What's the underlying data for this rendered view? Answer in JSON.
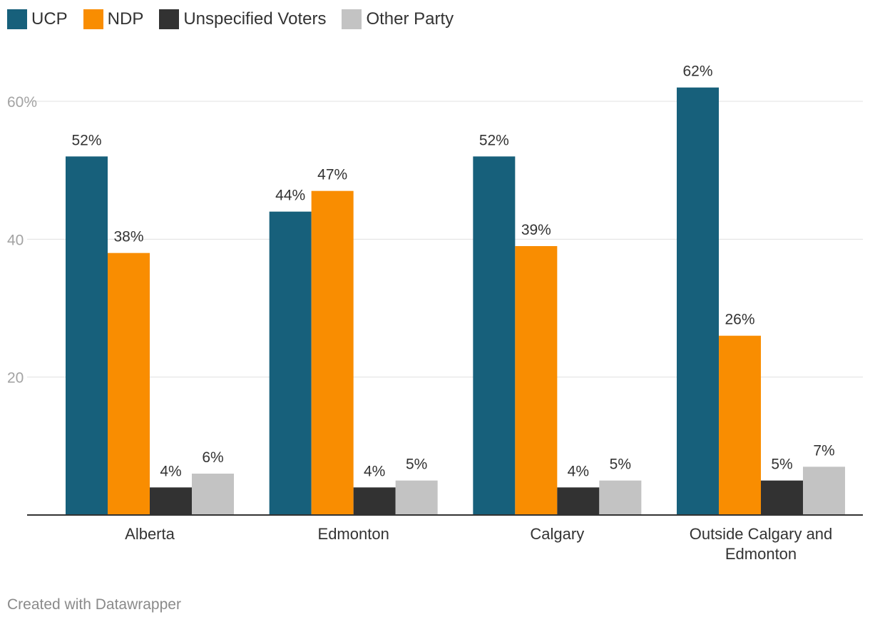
{
  "chart_data": {
    "type": "bar",
    "title": "",
    "xlabel": "",
    "ylabel": "",
    "ylim": [
      0,
      60
    ],
    "yticks": [
      20,
      40,
      60
    ],
    "ytick_labels": [
      "20",
      "40",
      "60%"
    ],
    "grid": true,
    "legend_position": "top-left",
    "categories": [
      "Alberta",
      "Edmonton",
      "Calgary",
      "Outside Calgary and Edmonton"
    ],
    "category_lines": [
      [
        "Alberta"
      ],
      [
        "Edmonton"
      ],
      [
        "Calgary"
      ],
      [
        "Outside Calgary and",
        "Edmonton"
      ]
    ],
    "series": [
      {
        "name": "UCP",
        "color": "#17607b",
        "values": [
          52,
          44,
          52,
          62
        ]
      },
      {
        "name": "NDP",
        "color": "#f98d01",
        "values": [
          38,
          47,
          39,
          26
        ]
      },
      {
        "name": "Unspecified Voters",
        "color": "#323232",
        "values": [
          4,
          4,
          4,
          5
        ]
      },
      {
        "name": "Other Party",
        "color": "#c3c3c3",
        "values": [
          6,
          5,
          5,
          7
        ]
      }
    ],
    "value_suffix": "%"
  },
  "footer": {
    "credit": "Created with Datawrapper"
  }
}
